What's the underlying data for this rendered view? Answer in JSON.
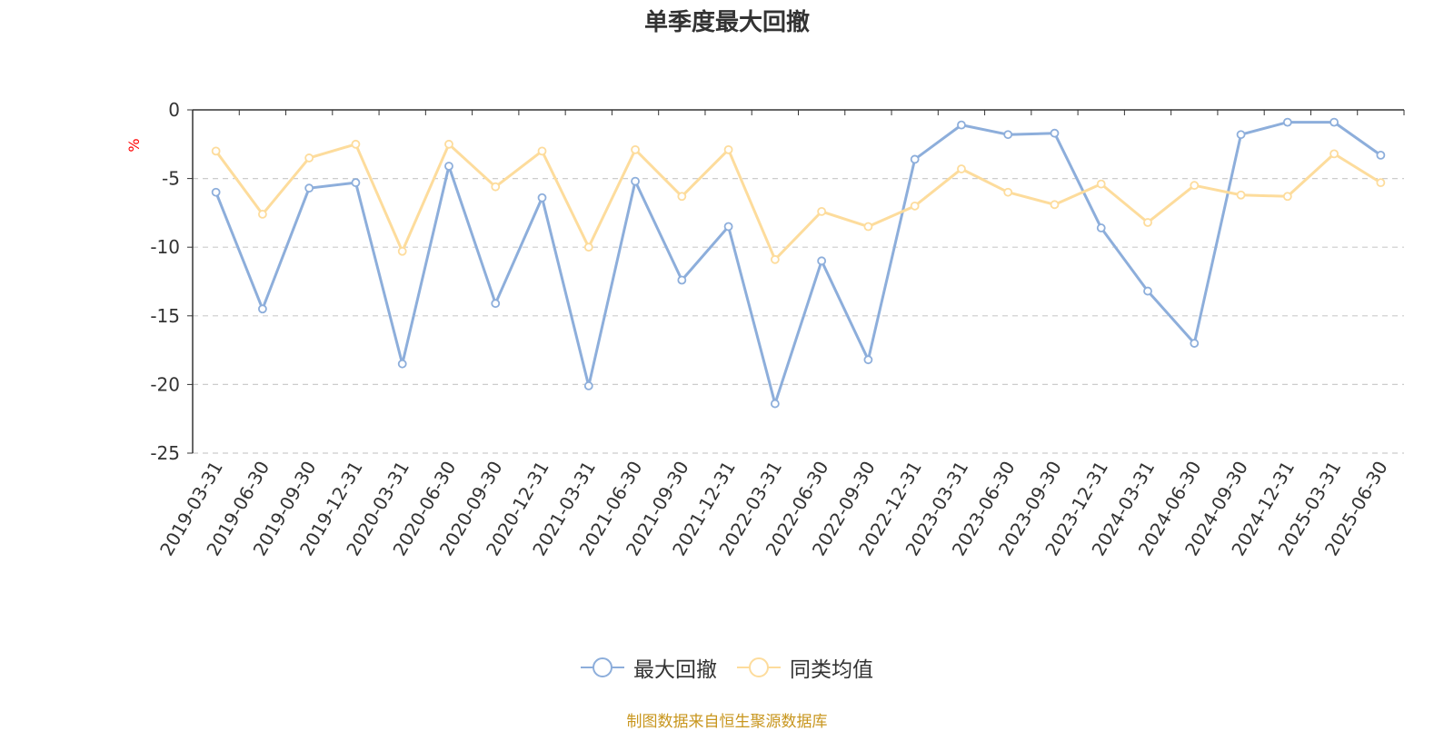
{
  "title": "单季度最大回撤",
  "source_note": "制图数据来自恒生聚源数据库",
  "chart_data": {
    "type": "line",
    "title": "单季度最大回撤",
    "ylabel": "%",
    "ylim": [
      -25,
      0
    ],
    "yticks": [
      0,
      -5,
      -10,
      -15,
      -20,
      -25
    ],
    "grid": true,
    "legend_position": "bottom",
    "categories": [
      "2019-03-31",
      "2019-06-30",
      "2019-09-30",
      "2019-12-31",
      "2020-03-31",
      "2020-06-30",
      "2020-09-30",
      "2020-12-31",
      "2021-03-31",
      "2021-06-30",
      "2021-09-30",
      "2021-12-31",
      "2022-03-31",
      "2022-06-30",
      "2022-09-30",
      "2022-12-31",
      "2023-03-31",
      "2023-06-30",
      "2023-09-30",
      "2023-12-31",
      "2024-03-31",
      "2024-06-30",
      "2024-09-30",
      "2024-12-31",
      "2025-03-31",
      "2025-06-30"
    ],
    "series": [
      {
        "name": "最大回撤",
        "color": "#8daedb",
        "values": [
          -6.0,
          -14.5,
          -5.7,
          -5.3,
          -18.5,
          -4.1,
          -14.1,
          -6.4,
          -20.1,
          -5.2,
          -12.4,
          -8.5,
          -21.4,
          -11.0,
          -18.2,
          -3.6,
          -1.1,
          -1.8,
          -1.7,
          -8.6,
          -13.2,
          -17.0,
          -1.8,
          -0.9,
          -0.9,
          -3.3
        ]
      },
      {
        "name": "同类均值",
        "color": "#fddc9c",
        "values": [
          -3.0,
          -7.6,
          -3.5,
          -2.5,
          -10.3,
          -2.5,
          -5.6,
          -3.0,
          -10.0,
          -2.9,
          -6.3,
          -2.9,
          -10.9,
          -7.4,
          -8.5,
          -7.0,
          -4.3,
          -6.0,
          -6.9,
          -5.4,
          -8.2,
          -5.5,
          -6.2,
          -6.3,
          -3.2,
          -5.3
        ]
      }
    ]
  }
}
